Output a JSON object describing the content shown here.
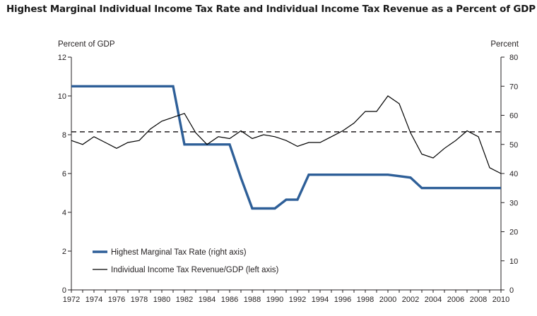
{
  "chart_data": {
    "type": "line",
    "title": "Highest Marginal Individual Income Tax Rate and Individual Income Tax Revenue as a Percent of GDP",
    "left_axis": {
      "label": "Percent of GDP",
      "range": [
        0,
        12
      ],
      "ticks": [
        0,
        2,
        4,
        6,
        8,
        10,
        12
      ]
    },
    "right_axis": {
      "label": "Percent",
      "range": [
        0,
        80
      ],
      "ticks": [
        0,
        10,
        20,
        30,
        40,
        50,
        60,
        70,
        80
      ]
    },
    "x_axis": {
      "range": [
        1972,
        2010
      ],
      "ticks": [
        1972,
        1974,
        1976,
        1978,
        1980,
        1982,
        1984,
        1986,
        1988,
        1990,
        1992,
        1994,
        1996,
        1998,
        2000,
        2002,
        2004,
        2006,
        2008,
        2010
      ]
    },
    "series": [
      {
        "name": "Highest Marginal Tax Rate (right axis)",
        "axis": "right",
        "color": "#2e5f98",
        "style": "thick-step",
        "x": [
          1972,
          1981,
          1982,
          1986,
          1987,
          1988,
          1990,
          1991,
          1992,
          1993,
          2000,
          2001,
          2002,
          2003,
          2010
        ],
        "y": [
          70,
          70,
          50,
          50,
          38.5,
          28,
          28,
          31,
          31,
          39.6,
          39.6,
          39.1,
          38.6,
          35,
          35
        ]
      },
      {
        "name": "Individual Income Tax Revenue/GDP (left axis)",
        "axis": "left",
        "color": "#000000",
        "style": "thin",
        "x": [
          1972,
          1973,
          1974,
          1975,
          1976,
          1977,
          1978,
          1979,
          1980,
          1981,
          1982,
          1983,
          1984,
          1985,
          1986,
          1987,
          1988,
          1989,
          1990,
          1991,
          1992,
          1993,
          1994,
          1995,
          1996,
          1997,
          1998,
          1999,
          2000,
          2001,
          2002,
          2003,
          2004,
          2005,
          2006,
          2007,
          2008,
          2009,
          2010
        ],
        "y": [
          7.7,
          7.5,
          7.9,
          7.6,
          7.3,
          7.6,
          7.7,
          8.3,
          8.7,
          8.9,
          9.1,
          8.1,
          7.5,
          7.9,
          7.8,
          8.2,
          7.8,
          8.0,
          7.9,
          7.7,
          7.4,
          7.6,
          7.6,
          7.9,
          8.2,
          8.6,
          9.2,
          9.2,
          10.0,
          9.6,
          8.1,
          7.0,
          6.8,
          7.3,
          7.7,
          8.2,
          7.9,
          6.3,
          6.0
        ]
      }
    ],
    "reference_line": {
      "axis": "left",
      "value": 8.15,
      "style": "dashed"
    },
    "grid": false,
    "legend": "bottom-left"
  }
}
